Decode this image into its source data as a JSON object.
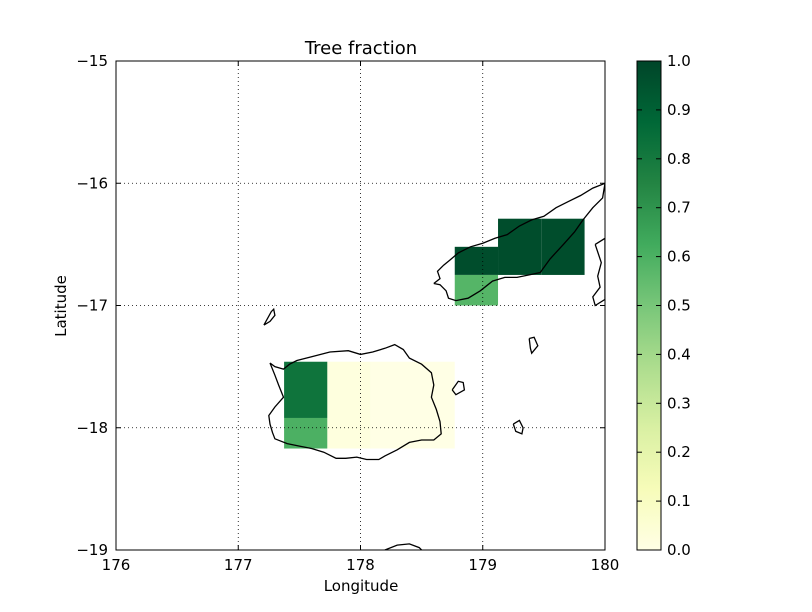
{
  "chart_data": {
    "type": "heatmap",
    "title": "Tree fraction",
    "xlabel": "Longitude",
    "ylabel": "Latitude",
    "xlim": [
      176,
      180
    ],
    "ylim": [
      -19,
      -15
    ],
    "xticks": [
      176,
      177,
      178,
      179,
      180
    ],
    "xtick_labels": [
      "176",
      "177",
      "178",
      "179",
      "180"
    ],
    "yticks": [
      -19,
      -18,
      -17,
      -16,
      -15
    ],
    "ytick_labels": [
      "−19",
      "−18",
      "−17",
      "−16",
      "−15"
    ],
    "grid": true,
    "colormap": "YlGn",
    "colorbar": {
      "range": [
        0,
        1
      ],
      "ticks": [
        0.0,
        0.1,
        0.2,
        0.3,
        0.4,
        0.5,
        0.6,
        0.7,
        0.8,
        0.9,
        1.0
      ],
      "tick_labels": [
        "0.0",
        "0.1",
        "0.2",
        "0.3",
        "0.4",
        "0.5",
        "0.6",
        "0.7",
        "0.8",
        "0.9",
        "1.0"
      ]
    },
    "cells": [
      {
        "lon": [
          177.375,
          177.729
        ],
        "lat": [
          -17.92,
          -17.46
        ],
        "value": 0.82
      },
      {
        "lon": [
          177.375,
          177.729
        ],
        "lat": [
          -18.17,
          -17.92
        ],
        "value": 0.6
      },
      {
        "lon": [
          177.729,
          178.083
        ],
        "lat": [
          -18.17,
          -17.46
        ],
        "value": 0.02
      },
      {
        "lon": [
          178.083,
          178.771
        ],
        "lat": [
          -18.17,
          -17.46
        ],
        "value": 0.0
      },
      {
        "lon": [
          178.771,
          179.125
        ],
        "lat": [
          -16.75,
          -16.52
        ],
        "value": 0.97
      },
      {
        "lon": [
          178.771,
          179.125
        ],
        "lat": [
          -17.0,
          -16.75
        ],
        "value": 0.58
      },
      {
        "lon": [
          179.125,
          179.479
        ],
        "lat": [
          -16.75,
          -16.29
        ],
        "value": 0.97
      },
      {
        "lon": [
          179.479,
          179.833
        ],
        "lat": [
          -16.75,
          -16.29
        ],
        "value": 0.97
      }
    ],
    "coastlines": [
      [
        [
          177.26,
          -17.47
        ],
        [
          177.3,
          -17.5
        ],
        [
          177.37,
          -17.52
        ],
        [
          177.42,
          -17.48
        ],
        [
          177.48,
          -17.45
        ],
        [
          177.6,
          -17.42
        ],
        [
          177.75,
          -17.38
        ],
        [
          177.9,
          -17.37
        ],
        [
          178.0,
          -17.4
        ],
        [
          178.1,
          -17.38
        ],
        [
          178.2,
          -17.35
        ],
        [
          178.28,
          -17.32
        ],
        [
          178.35,
          -17.36
        ],
        [
          178.4,
          -17.43
        ],
        [
          178.5,
          -17.48
        ],
        [
          178.58,
          -17.55
        ],
        [
          178.6,
          -17.65
        ],
        [
          178.58,
          -17.75
        ],
        [
          178.62,
          -17.85
        ],
        [
          178.65,
          -17.95
        ],
        [
          178.66,
          -18.05
        ],
        [
          178.6,
          -18.1
        ],
        [
          178.5,
          -18.1
        ],
        [
          178.4,
          -18.12
        ],
        [
          178.3,
          -18.18
        ],
        [
          178.2,
          -18.23
        ],
        [
          178.15,
          -18.26
        ],
        [
          178.05,
          -18.26
        ],
        [
          177.97,
          -18.24
        ],
        [
          177.88,
          -18.25
        ],
        [
          177.8,
          -18.25
        ],
        [
          177.7,
          -18.2
        ],
        [
          177.6,
          -18.17
        ],
        [
          177.5,
          -18.15
        ],
        [
          177.4,
          -18.13
        ],
        [
          177.3,
          -18.09
        ],
        [
          177.28,
          -18.04
        ],
        [
          177.26,
          -17.97
        ],
        [
          177.25,
          -17.9
        ],
        [
          177.3,
          -17.83
        ],
        [
          177.37,
          -17.75
        ],
        [
          177.33,
          -17.65
        ],
        [
          177.3,
          -17.57
        ],
        [
          177.26,
          -17.47
        ]
      ],
      [
        [
          178.6,
          -16.82
        ],
        [
          178.65,
          -16.78
        ],
        [
          178.63,
          -16.72
        ],
        [
          178.68,
          -16.67
        ],
        [
          178.73,
          -16.63
        ],
        [
          178.8,
          -16.57
        ],
        [
          178.9,
          -16.52
        ],
        [
          179.0,
          -16.49
        ],
        [
          179.1,
          -16.45
        ],
        [
          179.2,
          -16.42
        ],
        [
          179.3,
          -16.35
        ],
        [
          179.4,
          -16.3
        ],
        [
          179.5,
          -16.27
        ],
        [
          179.6,
          -16.2
        ],
        [
          179.7,
          -16.15
        ],
        [
          179.8,
          -16.1
        ],
        [
          179.9,
          -16.04
        ],
        [
          180.0,
          -16.0
        ],
        [
          179.98,
          -16.12
        ],
        [
          179.9,
          -16.2
        ],
        [
          179.82,
          -16.3
        ],
        [
          179.75,
          -16.4
        ],
        [
          179.66,
          -16.5
        ],
        [
          179.55,
          -16.62
        ],
        [
          179.47,
          -16.73
        ],
        [
          179.38,
          -16.75
        ],
        [
          179.28,
          -16.77
        ],
        [
          179.18,
          -16.77
        ],
        [
          179.08,
          -16.8
        ],
        [
          178.98,
          -16.88
        ],
        [
          178.88,
          -16.94
        ],
        [
          178.78,
          -16.96
        ],
        [
          178.72,
          -16.94
        ],
        [
          178.7,
          -16.88
        ],
        [
          178.65,
          -16.83
        ],
        [
          178.6,
          -16.82
        ]
      ],
      [
        [
          177.21,
          -17.16
        ],
        [
          177.27,
          -17.05
        ],
        [
          177.29,
          -17.03
        ],
        [
          177.3,
          -17.08
        ],
        [
          177.26,
          -17.13
        ],
        [
          177.21,
          -17.16
        ]
      ],
      [
        [
          179.38,
          -17.27
        ],
        [
          179.42,
          -17.26
        ],
        [
          179.45,
          -17.33
        ],
        [
          179.4,
          -17.39
        ],
        [
          179.39,
          -17.35
        ],
        [
          179.38,
          -17.27
        ]
      ],
      [
        [
          178.75,
          -17.69
        ],
        [
          178.8,
          -17.62
        ],
        [
          178.84,
          -17.63
        ],
        [
          178.85,
          -17.69
        ],
        [
          178.78,
          -17.73
        ],
        [
          178.75,
          -17.69
        ]
      ],
      [
        [
          179.25,
          -17.97
        ],
        [
          179.3,
          -17.94
        ],
        [
          179.33,
          -18.0
        ],
        [
          179.32,
          -18.05
        ],
        [
          179.27,
          -18.03
        ],
        [
          179.25,
          -17.97
        ]
      ],
      [
        [
          178.2,
          -19.0
        ],
        [
          178.3,
          -18.96
        ],
        [
          178.4,
          -18.95
        ],
        [
          178.48,
          -18.98
        ],
        [
          178.5,
          -19.0
        ]
      ],
      [
        [
          179.92,
          -16.5
        ],
        [
          180.0,
          -16.45
        ],
        [
          180.0,
          -16.95
        ],
        [
          179.92,
          -17.0
        ],
        [
          179.9,
          -16.93
        ],
        [
          179.96,
          -16.85
        ],
        [
          179.94,
          -16.76
        ],
        [
          179.97,
          -16.65
        ],
        [
          179.92,
          -16.5
        ]
      ]
    ]
  }
}
